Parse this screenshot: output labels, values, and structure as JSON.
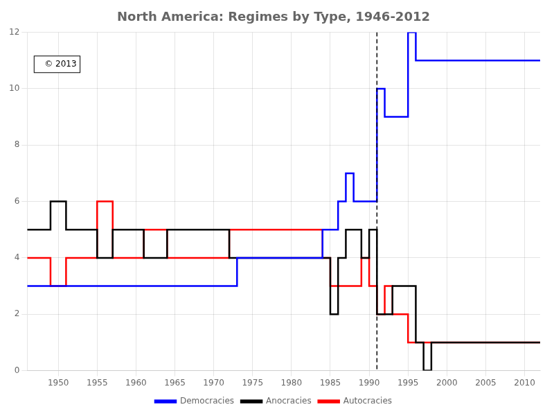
{
  "chart_data": {
    "type": "step",
    "title": "North America: Regimes by Type, 1946-2012",
    "x": [
      1946,
      1947,
      1948,
      1949,
      1950,
      1951,
      1952,
      1953,
      1954,
      1955,
      1956,
      1957,
      1958,
      1959,
      1960,
      1961,
      1962,
      1963,
      1964,
      1965,
      1966,
      1967,
      1968,
      1969,
      1970,
      1971,
      1972,
      1973,
      1974,
      1975,
      1976,
      1977,
      1978,
      1979,
      1980,
      1981,
      1982,
      1983,
      1984,
      1985,
      1986,
      1987,
      1988,
      1989,
      1990,
      1991,
      1992,
      1993,
      1994,
      1995,
      1996,
      1997,
      1998,
      1999,
      2000,
      2001,
      2002,
      2003,
      2004,
      2005,
      2006,
      2007,
      2008,
      2009,
      2010,
      2011,
      2012
    ],
    "series": [
      {
        "name": "Democracies",
        "color": "#0000ff",
        "values": [
          3,
          3,
          3,
          3,
          3,
          3,
          3,
          3,
          3,
          3,
          3,
          3,
          3,
          3,
          3,
          3,
          3,
          3,
          3,
          3,
          3,
          3,
          3,
          3,
          3,
          3,
          3,
          4,
          4,
          4,
          4,
          4,
          4,
          4,
          4,
          4,
          4,
          4,
          5,
          5,
          6,
          7,
          6,
          6,
          6,
          10,
          9,
          9,
          9,
          12,
          11,
          11,
          11,
          11,
          11,
          11,
          11,
          11,
          11,
          11,
          11,
          11,
          11,
          11,
          11,
          11,
          11
        ]
      },
      {
        "name": "Anocracies",
        "color": "#000000",
        "values": [
          5,
          5,
          5,
          6,
          6,
          5,
          5,
          5,
          5,
          4,
          4,
          5,
          5,
          5,
          5,
          4,
          4,
          4,
          5,
          5,
          5,
          5,
          5,
          5,
          5,
          5,
          4,
          4,
          4,
          4,
          4,
          4,
          4,
          4,
          4,
          4,
          4,
          4,
          4,
          2,
          4,
          5,
          5,
          4,
          5,
          2,
          2,
          3,
          3,
          3,
          1,
          0,
          1,
          1,
          1,
          1,
          1,
          1,
          1,
          1,
          1,
          1,
          1,
          1,
          1,
          1,
          1
        ]
      },
      {
        "name": "Autocracies",
        "color": "#ff0000",
        "values": [
          4,
          4,
          4,
          3,
          3,
          4,
          4,
          4,
          4,
          6,
          6,
          4,
          4,
          4,
          4,
          5,
          5,
          5,
          4,
          4,
          4,
          4,
          4,
          4,
          4,
          4,
          5,
          5,
          5,
          5,
          5,
          5,
          5,
          5,
          5,
          5,
          5,
          5,
          4,
          3,
          3,
          3,
          3,
          4,
          3,
          2,
          3,
          2,
          2,
          1,
          1,
          1,
          1,
          1,
          1,
          1,
          1,
          1,
          1,
          1,
          1,
          1,
          1,
          1,
          1,
          1,
          1
        ]
      }
    ],
    "xlim": [
      1946,
      2012
    ],
    "xticks": [
      1950,
      1955,
      1960,
      1965,
      1970,
      1975,
      1980,
      1985,
      1990,
      1995,
      2000,
      2005,
      2010
    ],
    "ylim": [
      0,
      12
    ],
    "yticks": [
      0,
      2,
      4,
      6,
      8,
      10,
      12
    ],
    "vertical_line": {
      "x": 1991,
      "line_style": "dashed",
      "color": "#000000"
    },
    "annotations": [
      "© 2013"
    ],
    "grid": true,
    "legend": "bottom"
  }
}
